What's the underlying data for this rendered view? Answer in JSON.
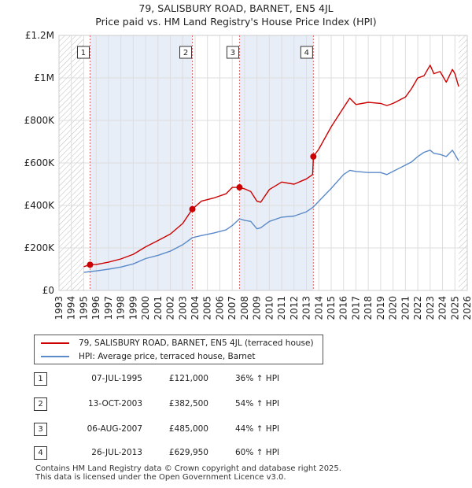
{
  "title_line1": "79, SALISBURY ROAD, BARNET, EN5 4JL",
  "title_line2": "Price paid vs. HM Land Registry's House Price Index (HPI)",
  "colors": {
    "price_line": "#cc0000",
    "hpi_line": "#5b8ac9",
    "marker_vline": "#e06a6a",
    "hatch": "#bbbbbb",
    "shade": "#e8eef8",
    "grid": "#dddddd"
  },
  "chart_data": {
    "type": "line",
    "title": "79, SALISBURY ROAD, BARNET, EN5 4JL — Price paid vs. HM Land Registry's House Price Index (HPI)",
    "xlabel": "",
    "ylabel": "",
    "xlim": [
      1993,
      2026
    ],
    "ylim": [
      0,
      1200000
    ],
    "y_ticks": [
      0,
      200000,
      400000,
      600000,
      800000,
      1000000,
      1200000
    ],
    "y_tick_labels": [
      "£0",
      "£200K",
      "£400K",
      "£600K",
      "£800K",
      "£1M",
      "£1.2M"
    ],
    "x_ticks": [
      1993,
      1994,
      1995,
      1996,
      1997,
      1998,
      1999,
      2000,
      2001,
      2002,
      2003,
      2004,
      2005,
      2006,
      2007,
      2008,
      2009,
      2010,
      2011,
      2012,
      2013,
      2014,
      2015,
      2016,
      2017,
      2018,
      2019,
      2020,
      2021,
      2022,
      2023,
      2024,
      2025,
      2026
    ],
    "x_tick_labels": [
      "1993",
      "1994",
      "1995",
      "1996",
      "1997",
      "1998",
      "1999",
      "2000",
      "2001",
      "2002",
      "2003",
      "2004",
      "2005",
      "2006",
      "2007",
      "2008",
      "2009",
      "2010",
      "2011",
      "2012",
      "2013",
      "2014",
      "2015",
      "2016",
      "2017",
      "2018",
      "2019",
      "2020",
      "2021",
      "2022",
      "2023",
      "2024",
      "2025",
      "2026"
    ],
    "grid": true,
    "hatched_regions": [
      [
        1993,
        1995.0
      ],
      [
        2025.3,
        2026
      ]
    ],
    "shaded_regions": [
      [
        1995.51,
        2003.78
      ],
      [
        2007.59,
        2013.56
      ]
    ],
    "series": [
      {
        "name": "79, SALISBURY ROAD, BARNET, EN5 4JL (terraced house)",
        "color": "#cc0000",
        "x": [
          1995.0,
          1995.51,
          1996.0,
          1997.0,
          1998.0,
          1999.0,
          2000.0,
          2001.0,
          2002.0,
          2003.0,
          2003.78,
          2004.5,
          2005.5,
          2006.5,
          2007.0,
          2007.59,
          2008.0,
          2008.5,
          2009.0,
          2009.3,
          2010.0,
          2011.0,
          2012.0,
          2013.0,
          2013.5,
          2013.56,
          2014.0,
          2015.0,
          2016.0,
          2016.5,
          2017.0,
          2018.0,
          2019.0,
          2019.5,
          2020.0,
          2021.0,
          2021.5,
          2022.0,
          2022.5,
          2023.0,
          2023.3,
          2023.8,
          2024.3,
          2024.8,
          2025.0,
          2025.3
        ],
        "y": [
          112000,
          121000,
          122000,
          133000,
          148000,
          170000,
          205000,
          235000,
          265000,
          315000,
          382500,
          420000,
          435000,
          455000,
          485000,
          485000,
          478000,
          465000,
          420000,
          415000,
          475000,
          510000,
          500000,
          525000,
          545000,
          629950,
          665000,
          770000,
          860000,
          905000,
          875000,
          885000,
          880000,
          870000,
          880000,
          910000,
          950000,
          1000000,
          1010000,
          1060000,
          1020000,
          1030000,
          980000,
          1040000,
          1020000,
          960000
        ]
      },
      {
        "name": "HPI: Average price, terraced house, Barnet",
        "color": "#5b8ac9",
        "x": [
          1995.0,
          1995.51,
          1996.0,
          1997.0,
          1998.0,
          1999.0,
          2000.0,
          2001.0,
          2002.0,
          2003.0,
          2003.78,
          2004.5,
          2005.5,
          2006.5,
          2007.0,
          2007.59,
          2008.0,
          2008.5,
          2009.0,
          2009.3,
          2010.0,
          2011.0,
          2012.0,
          2013.0,
          2013.56,
          2014.0,
          2015.0,
          2016.0,
          2016.5,
          2017.0,
          2018.0,
          2019.0,
          2019.5,
          2020.0,
          2021.0,
          2021.5,
          2022.0,
          2022.5,
          2023.0,
          2023.3,
          2023.8,
          2024.3,
          2024.8,
          2025.0,
          2025.3
        ],
        "y": [
          85000,
          89000,
          92000,
          100000,
          110000,
          125000,
          150000,
          165000,
          185000,
          215000,
          248000,
          258000,
          270000,
          285000,
          305000,
          337000,
          330000,
          325000,
          290000,
          295000,
          325000,
          345000,
          350000,
          370000,
          393000,
          420000,
          480000,
          545000,
          565000,
          560000,
          555000,
          555000,
          545000,
          560000,
          590000,
          605000,
          630000,
          650000,
          660000,
          645000,
          640000,
          630000,
          660000,
          640000,
          610000
        ]
      }
    ],
    "sale_markers": [
      {
        "label": "1",
        "x": 1995.51,
        "y": 121000
      },
      {
        "label": "2",
        "x": 2003.78,
        "y": 382500
      },
      {
        "label": "3",
        "x": 2007.59,
        "y": 485000
      },
      {
        "label": "4",
        "x": 2013.56,
        "y": 629950
      }
    ]
  },
  "legend": {
    "items": [
      {
        "label": "79, SALISBURY ROAD, BARNET, EN5 4JL (terraced house)",
        "color": "#cc0000"
      },
      {
        "label": "HPI: Average price, terraced house, Barnet",
        "color": "#5b8ac9"
      }
    ]
  },
  "sales": [
    {
      "num": "1",
      "date": "07-JUL-1995",
      "price": "£121,000",
      "hpi": "36% ↑ HPI"
    },
    {
      "num": "2",
      "date": "13-OCT-2003",
      "price": "£382,500",
      "hpi": "54% ↑ HPI"
    },
    {
      "num": "3",
      "date": "06-AUG-2007",
      "price": "£485,000",
      "hpi": "44% ↑ HPI"
    },
    {
      "num": "4",
      "date": "26-JUL-2013",
      "price": "£629,950",
      "hpi": "60% ↑ HPI"
    }
  ],
  "footer": {
    "line1": "Contains HM Land Registry data © Crown copyright and database right 2025.",
    "line2": "This data is licensed under the Open Government Licence v3.0."
  }
}
